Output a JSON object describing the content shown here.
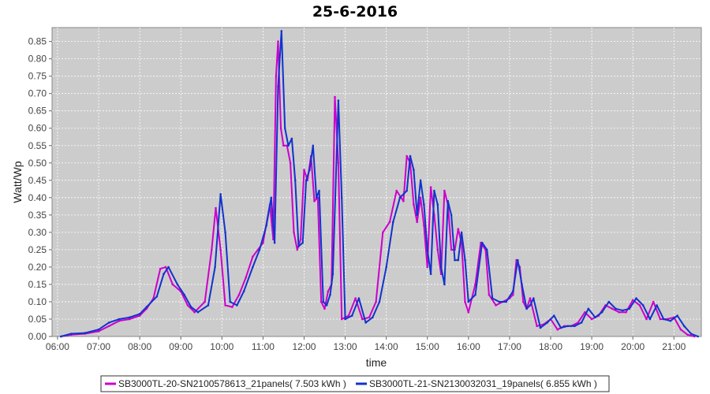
{
  "chart_data": {
    "type": "line",
    "title": "25-6-2016",
    "xlabel": "time",
    "ylabel": "Watt/Wp",
    "xlim": [
      "05:52",
      "21:40"
    ],
    "ylim": [
      0,
      0.89
    ],
    "x_ticks": [
      "06:00",
      "07:00",
      "08:00",
      "09:00",
      "10:00",
      "11:00",
      "12:00",
      "13:00",
      "14:00",
      "15:00",
      "16:00",
      "17:00",
      "18:00",
      "19:00",
      "20:00",
      "21:00"
    ],
    "y_ticks": [
      "0.00",
      "0.05",
      "0.10",
      "0.15",
      "0.20",
      "0.25",
      "0.30",
      "0.35",
      "0.40",
      "0.45",
      "0.50",
      "0.55",
      "0.60",
      "0.65",
      "0.70",
      "0.75",
      "0.80",
      "0.85"
    ],
    "grid": true,
    "legend_position": "bottom",
    "colors": {
      "plot_background": "#cccccc",
      "grid": "#ffffff"
    },
    "series": [
      {
        "name": "SB3000TL-20-SN2100578613_21panels( 7.503 kWh )",
        "color": "#cc00cc",
        "points": [
          [
            "06:05",
            0.0
          ],
          [
            "06:20",
            0.005
          ],
          [
            "06:40",
            0.008
          ],
          [
            "07:00",
            0.015
          ],
          [
            "07:15",
            0.03
          ],
          [
            "07:30",
            0.045
          ],
          [
            "07:45",
            0.05
          ],
          [
            "08:00",
            0.06
          ],
          [
            "08:10",
            0.08
          ],
          [
            "08:20",
            0.11
          ],
          [
            "08:30",
            0.195
          ],
          [
            "08:38",
            0.2
          ],
          [
            "08:48",
            0.15
          ],
          [
            "09:00",
            0.13
          ],
          [
            "09:10",
            0.09
          ],
          [
            "09:20",
            0.07
          ],
          [
            "09:35",
            0.1
          ],
          [
            "09:45",
            0.25
          ],
          [
            "09:51",
            0.37
          ],
          [
            "09:58",
            0.25
          ],
          [
            "10:05",
            0.09
          ],
          [
            "10:15",
            0.085
          ],
          [
            "10:25",
            0.12
          ],
          [
            "10:35",
            0.17
          ],
          [
            "10:45",
            0.23
          ],
          [
            "11:00",
            0.27
          ],
          [
            "11:10",
            0.38
          ],
          [
            "11:15",
            0.28
          ],
          [
            "11:19",
            0.75
          ],
          [
            "11:22",
            0.85
          ],
          [
            "11:26",
            0.6
          ],
          [
            "11:30",
            0.55
          ],
          [
            "11:35",
            0.55
          ],
          [
            "11:40",
            0.5
          ],
          [
            "11:45",
            0.3
          ],
          [
            "11:50",
            0.25
          ],
          [
            "11:55",
            0.28
          ],
          [
            "12:00",
            0.48
          ],
          [
            "12:05",
            0.45
          ],
          [
            "12:10",
            0.52
          ],
          [
            "12:15",
            0.39
          ],
          [
            "12:20",
            0.4
          ],
          [
            "12:25",
            0.1
          ],
          [
            "12:30",
            0.08
          ],
          [
            "12:35",
            0.13
          ],
          [
            "12:40",
            0.15
          ],
          [
            "12:45",
            0.69
          ],
          [
            "12:50",
            0.5
          ],
          [
            "12:55",
            0.05
          ],
          [
            "13:05",
            0.06
          ],
          [
            "13:15",
            0.11
          ],
          [
            "13:25",
            0.05
          ],
          [
            "13:35",
            0.055
          ],
          [
            "13:45",
            0.1
          ],
          [
            "13:55",
            0.3
          ],
          [
            "14:05",
            0.33
          ],
          [
            "14:15",
            0.42
          ],
          [
            "14:25",
            0.39
          ],
          [
            "14:30",
            0.52
          ],
          [
            "14:35",
            0.5
          ],
          [
            "14:40",
            0.38
          ],
          [
            "14:45",
            0.33
          ],
          [
            "14:50",
            0.4
          ],
          [
            "14:55",
            0.32
          ],
          [
            "15:00",
            0.2
          ],
          [
            "15:05",
            0.43
          ],
          [
            "15:10",
            0.35
          ],
          [
            "15:15",
            0.25
          ],
          [
            "15:20",
            0.18
          ],
          [
            "15:25",
            0.42
          ],
          [
            "15:30",
            0.38
          ],
          [
            "15:35",
            0.25
          ],
          [
            "15:40",
            0.25
          ],
          [
            "15:45",
            0.31
          ],
          [
            "15:50",
            0.27
          ],
          [
            "15:55",
            0.1
          ],
          [
            "16:00",
            0.07
          ],
          [
            "16:10",
            0.15
          ],
          [
            "16:18",
            0.27
          ],
          [
            "16:25",
            0.25
          ],
          [
            "16:30",
            0.12
          ],
          [
            "16:40",
            0.09
          ],
          [
            "16:50",
            0.1
          ],
          [
            "17:00",
            0.11
          ],
          [
            "17:05",
            0.12
          ],
          [
            "17:10",
            0.22
          ],
          [
            "17:15",
            0.2
          ],
          [
            "17:20",
            0.1
          ],
          [
            "17:25",
            0.08
          ],
          [
            "17:30",
            0.11
          ],
          [
            "17:40",
            0.03
          ],
          [
            "17:50",
            0.035
          ],
          [
            "18:00",
            0.05
          ],
          [
            "18:10",
            0.02
          ],
          [
            "18:20",
            0.03
          ],
          [
            "18:30",
            0.03
          ],
          [
            "18:40",
            0.04
          ],
          [
            "18:50",
            0.07
          ],
          [
            "19:00",
            0.05
          ],
          [
            "19:10",
            0.06
          ],
          [
            "19:20",
            0.09
          ],
          [
            "19:30",
            0.08
          ],
          [
            "19:40",
            0.07
          ],
          [
            "19:50",
            0.07
          ],
          [
            "20:00",
            0.105
          ],
          [
            "20:10",
            0.09
          ],
          [
            "20:20",
            0.05
          ],
          [
            "20:30",
            0.1
          ],
          [
            "20:40",
            0.05
          ],
          [
            "20:50",
            0.05
          ],
          [
            "21:00",
            0.055
          ],
          [
            "21:10",
            0.02
          ],
          [
            "21:20",
            0.005
          ],
          [
            "21:30",
            0.0
          ]
        ]
      },
      {
        "name": "SB3000TL-21-SN2130032031_19panels( 6.855 kWh )",
        "color": "#1133cc",
        "points": [
          [
            "06:05",
            0.0
          ],
          [
            "06:20",
            0.008
          ],
          [
            "06:40",
            0.01
          ],
          [
            "07:00",
            0.02
          ],
          [
            "07:15",
            0.04
          ],
          [
            "07:30",
            0.05
          ],
          [
            "07:45",
            0.055
          ],
          [
            "08:00",
            0.065
          ],
          [
            "08:10",
            0.085
          ],
          [
            "08:25",
            0.115
          ],
          [
            "08:35",
            0.18
          ],
          [
            "08:42",
            0.2
          ],
          [
            "08:55",
            0.15
          ],
          [
            "09:05",
            0.12
          ],
          [
            "09:15",
            0.085
          ],
          [
            "09:25",
            0.07
          ],
          [
            "09:40",
            0.09
          ],
          [
            "09:50",
            0.2
          ],
          [
            "09:58",
            0.41
          ],
          [
            "10:05",
            0.3
          ],
          [
            "10:12",
            0.1
          ],
          [
            "10:22",
            0.09
          ],
          [
            "10:32",
            0.13
          ],
          [
            "10:45",
            0.2
          ],
          [
            "10:55",
            0.25
          ],
          [
            "11:05",
            0.32
          ],
          [
            "11:12",
            0.4
          ],
          [
            "11:17",
            0.27
          ],
          [
            "11:22",
            0.72
          ],
          [
            "11:27",
            0.88
          ],
          [
            "11:32",
            0.6
          ],
          [
            "11:37",
            0.55
          ],
          [
            "11:42",
            0.57
          ],
          [
            "11:47",
            0.45
          ],
          [
            "11:52",
            0.26
          ],
          [
            "11:58",
            0.27
          ],
          [
            "12:03",
            0.45
          ],
          [
            "12:08",
            0.48
          ],
          [
            "12:13",
            0.55
          ],
          [
            "12:18",
            0.4
          ],
          [
            "12:22",
            0.42
          ],
          [
            "12:28",
            0.1
          ],
          [
            "12:33",
            0.09
          ],
          [
            "12:38",
            0.12
          ],
          [
            "12:42",
            0.18
          ],
          [
            "12:50",
            0.68
          ],
          [
            "12:55",
            0.4
          ],
          [
            "13:00",
            0.05
          ],
          [
            "13:10",
            0.06
          ],
          [
            "13:20",
            0.11
          ],
          [
            "13:30",
            0.04
          ],
          [
            "13:40",
            0.055
          ],
          [
            "13:50",
            0.1
          ],
          [
            "14:00",
            0.2
          ],
          [
            "14:10",
            0.33
          ],
          [
            "14:20",
            0.4
          ],
          [
            "14:30",
            0.42
          ],
          [
            "14:35",
            0.52
          ],
          [
            "14:40",
            0.48
          ],
          [
            "14:45",
            0.35
          ],
          [
            "14:50",
            0.45
          ],
          [
            "14:55",
            0.38
          ],
          [
            "15:00",
            0.25
          ],
          [
            "15:05",
            0.18
          ],
          [
            "15:10",
            0.42
          ],
          [
            "15:15",
            0.38
          ],
          [
            "15:20",
            0.2
          ],
          [
            "15:25",
            0.15
          ],
          [
            "15:30",
            0.39
          ],
          [
            "15:35",
            0.35
          ],
          [
            "15:40",
            0.22
          ],
          [
            "15:45",
            0.22
          ],
          [
            "15:50",
            0.3
          ],
          [
            "15:55",
            0.22
          ],
          [
            "16:00",
            0.1
          ],
          [
            "16:10",
            0.12
          ],
          [
            "16:20",
            0.27
          ],
          [
            "16:27",
            0.25
          ],
          [
            "16:35",
            0.11
          ],
          [
            "16:45",
            0.1
          ],
          [
            "16:55",
            0.1
          ],
          [
            "17:05",
            0.13
          ],
          [
            "17:12",
            0.22
          ],
          [
            "17:18",
            0.15
          ],
          [
            "17:25",
            0.08
          ],
          [
            "17:30",
            0.09
          ],
          [
            "17:35",
            0.11
          ],
          [
            "17:45",
            0.025
          ],
          [
            "17:55",
            0.04
          ],
          [
            "18:05",
            0.06
          ],
          [
            "18:15",
            0.025
          ],
          [
            "18:25",
            0.03
          ],
          [
            "18:35",
            0.03
          ],
          [
            "18:45",
            0.04
          ],
          [
            "18:55",
            0.08
          ],
          [
            "19:05",
            0.055
          ],
          [
            "19:15",
            0.07
          ],
          [
            "19:25",
            0.1
          ],
          [
            "19:35",
            0.08
          ],
          [
            "19:45",
            0.075
          ],
          [
            "19:55",
            0.08
          ],
          [
            "20:05",
            0.11
          ],
          [
            "20:15",
            0.09
          ],
          [
            "20:25",
            0.05
          ],
          [
            "20:35",
            0.09
          ],
          [
            "20:45",
            0.05
          ],
          [
            "20:55",
            0.045
          ],
          [
            "21:05",
            0.06
          ],
          [
            "21:15",
            0.03
          ],
          [
            "21:25",
            0.008
          ],
          [
            "21:35",
            0.0
          ]
        ]
      }
    ]
  }
}
